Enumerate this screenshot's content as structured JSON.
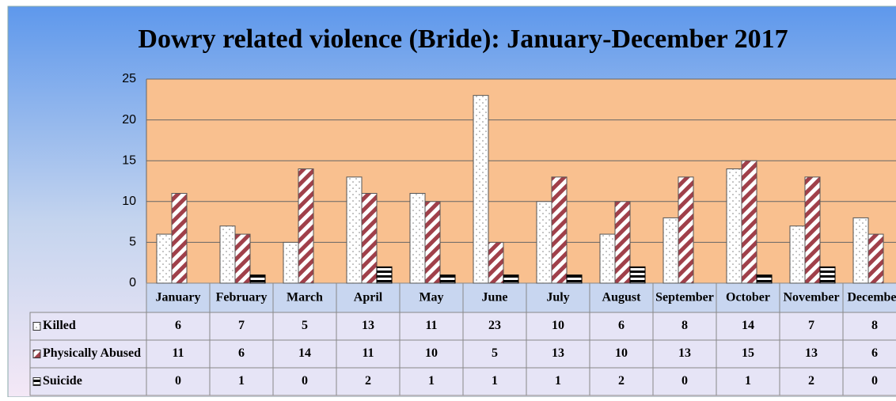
{
  "chart_data": {
    "type": "bar",
    "title": "Dowry related violence (Bride): January-December 2017",
    "categories": [
      "January",
      "February",
      "March",
      "April",
      "May",
      "June",
      "July",
      "August",
      "September",
      "October",
      "November",
      "December"
    ],
    "series": [
      {
        "name": "Killed",
        "color": "#7f7f7f",
        "values": [
          6,
          7,
          5,
          13,
          11,
          23,
          10,
          6,
          8,
          14,
          7,
          8
        ]
      },
      {
        "name": "Physically Abused",
        "color": "#a0404a",
        "values": [
          11,
          6,
          14,
          11,
          10,
          5,
          13,
          10,
          13,
          15,
          13,
          6
        ]
      },
      {
        "name": "Suicide",
        "color": "#000000",
        "values": [
          0,
          1,
          0,
          2,
          1,
          1,
          1,
          2,
          0,
          1,
          2,
          0
        ]
      }
    ],
    "ylim": [
      0,
      25
    ],
    "yticks": [
      0,
      5,
      10,
      15,
      20,
      25
    ],
    "grid": true
  }
}
